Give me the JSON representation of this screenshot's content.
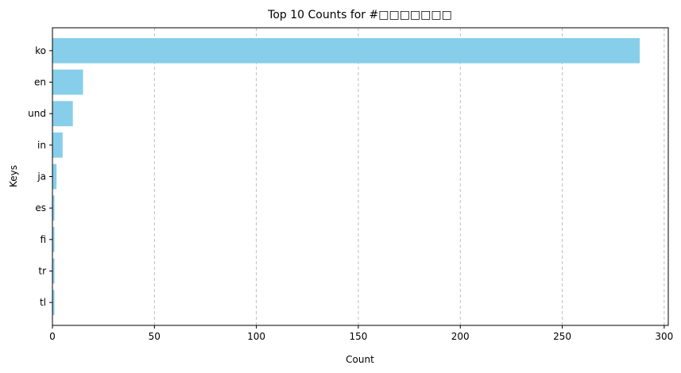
{
  "chart_data": {
    "type": "bar",
    "orientation": "horizontal",
    "title": "Top 10 Counts for #□□□□□□□",
    "xlabel": "Count",
    "ylabel": "Keys",
    "categories": [
      "ko",
      "en",
      "und",
      "in",
      "ja",
      "es",
      "fi",
      "tr",
      "tl"
    ],
    "values": [
      288,
      15,
      10,
      5,
      2,
      1,
      1,
      1,
      1
    ],
    "xlim": [
      0,
      302
    ],
    "xticks": [
      0,
      50,
      100,
      150,
      200,
      250,
      300
    ],
    "grid": "x-dashed",
    "bar_color": "#87ceeb",
    "grid_color": "#b0b0b0"
  }
}
